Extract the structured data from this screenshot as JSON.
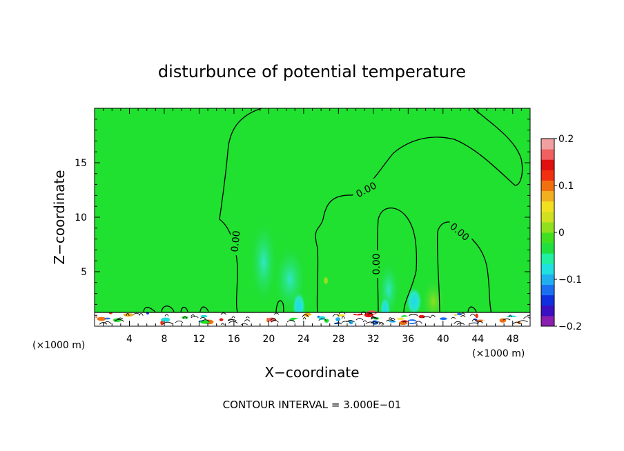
{
  "chart_data": {
    "type": "heatmap",
    "title": "disturbunce of potential temperature",
    "xlabel": "X−coordinate",
    "ylabel": "Z−coordinate",
    "x_unit": "(×1000 m)",
    "x_unit_right": "(×1000 m)",
    "xlim": [
      0,
      50
    ],
    "ylim": [
      0,
      20
    ],
    "xticks": [
      "4",
      "8",
      "12",
      "16",
      "20",
      "24",
      "28",
      "32",
      "36",
      "40",
      "44",
      "48"
    ],
    "xtick_values": [
      4,
      8,
      12,
      16,
      20,
      24,
      28,
      32,
      36,
      40,
      44,
      48
    ],
    "yticks": [
      "5",
      "10",
      "15"
    ],
    "ytick_values": [
      5,
      10,
      15
    ],
    "colorbar": {
      "vmin": -0.2,
      "vmax": 0.2,
      "tick_labels": [
        "0.2",
        "0.1",
        "0",
        "−0.1",
        "−0.2"
      ],
      "tick_values": [
        0.2,
        0.1,
        0,
        -0.1,
        -0.2
      ],
      "colors": [
        "#8a1fb0",
        "#3a10c0",
        "#1030e0",
        "#1a70f0",
        "#20b0f0",
        "#20e0e0",
        "#20f0a0",
        "#20e040",
        "#40e020",
        "#90e020",
        "#d0e020",
        "#f0e020",
        "#f0b020",
        "#f07010",
        "#f03010",
        "#e01010",
        "#f06060",
        "#f0a0a0"
      ]
    },
    "contour_label": "0.00",
    "contour_levels": [
      0.0
    ],
    "footer": "CONTOUR INTERVAL = 3.000E−01"
  }
}
